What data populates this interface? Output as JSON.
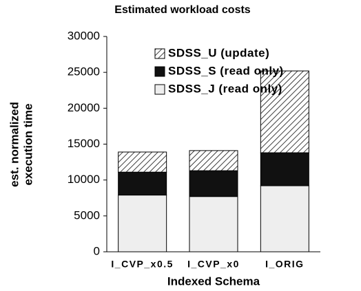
{
  "chart_data": {
    "type": "stacked_bar",
    "title": "Estimated workload costs",
    "ylabel": [
      "est. normalized",
      "execution time"
    ],
    "xlabel": "Indexed Schema",
    "categories": [
      "I_CVP_x0.5",
      "I_CVP_x0",
      "I_ORIG"
    ],
    "series": [
      {
        "name": "SDSS_J (read only)",
        "color": "#eeeeee",
        "values": [
          7900,
          7700,
          9200
        ]
      },
      {
        "name": "SDSS_S (read only)",
        "color": "#111111",
        "values": [
          3200,
          3600,
          4600
        ]
      },
      {
        "name": "SDSS_U (update)",
        "color": "#ffffff",
        "hatch": true,
        "values": [
          2800,
          2800,
          11400
        ]
      }
    ],
    "ylim": [
      0,
      30000
    ],
    "yticks": [
      0,
      5000,
      10000,
      15000,
      20000,
      25000,
      30000
    ],
    "legend": "top-left"
  }
}
